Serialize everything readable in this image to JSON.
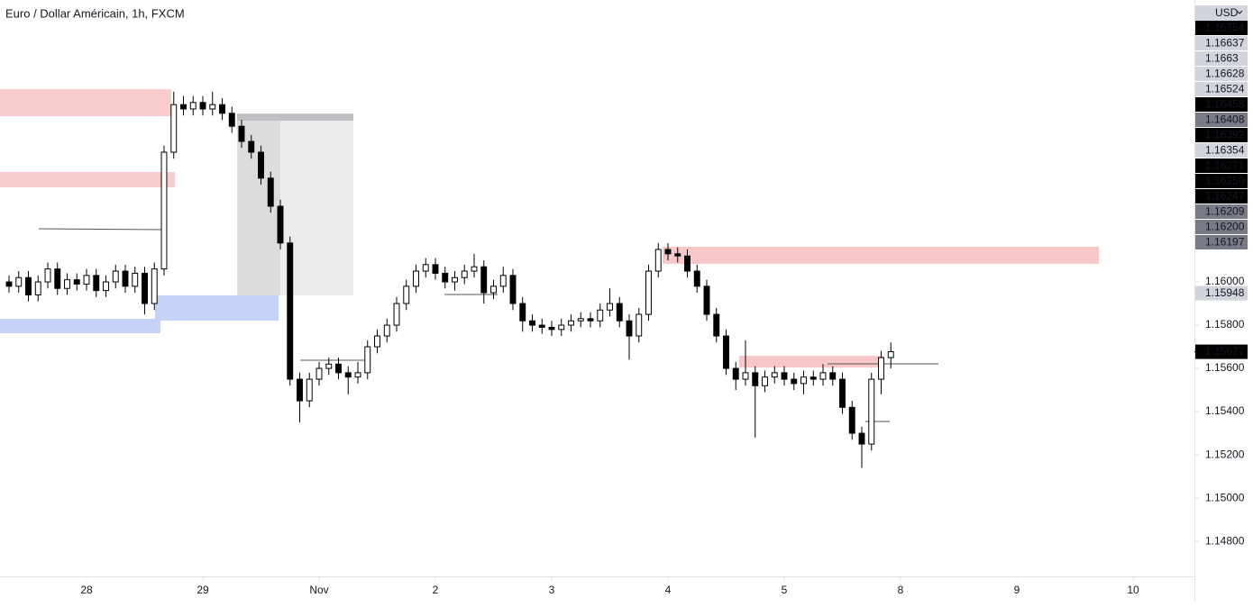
{
  "chart_data": {
    "type": "candlestick",
    "title": "Euro / Dollar Américain, 1h, FXCM",
    "currency": "USD",
    "up_color": "#ffffff",
    "down_color": "#000000",
    "wick_color": "#000000",
    "x": [
      -16,
      -14,
      -12,
      -10,
      -8,
      -6,
      -4,
      -2,
      0,
      2,
      4,
      6,
      8,
      10,
      12,
      14,
      16,
      18,
      20,
      22,
      24,
      26,
      28,
      30,
      32,
      34,
      36,
      38,
      40,
      42,
      44,
      46,
      48,
      50,
      52,
      54,
      56,
      58,
      60,
      62,
      64,
      66,
      68,
      70,
      72,
      74,
      76,
      78,
      80,
      82,
      84,
      86,
      88,
      90,
      92,
      94,
      96,
      98,
      100,
      102,
      104,
      106,
      108,
      110,
      112,
      114,
      116,
      118,
      120,
      122,
      124,
      126,
      128,
      130,
      132,
      134,
      136,
      138,
      140,
      142,
      144,
      146,
      148,
      150,
      152,
      154,
      156,
      158,
      160,
      162,
      164,
      166
    ],
    "open": [
      1.16,
      1.1598,
      1.1602,
      1.1594,
      1.16,
      1.1606,
      1.1597,
      1.1601,
      1.1599,
      1.1603,
      1.1596,
      1.16,
      1.1605,
      1.1598,
      1.1604,
      1.159,
      1.1606,
      1.166,
      1.1682,
      1.168,
      1.1683,
      1.168,
      1.1682,
      1.1678,
      1.1672,
      1.1665,
      1.166,
      1.1648,
      1.1635,
      1.1618,
      1.1555,
      1.1545,
      1.1555,
      1.156,
      1.1562,
      1.1558,
      1.1556,
      1.1558,
      1.157,
      1.1575,
      1.158,
      1.159,
      1.1598,
      1.1605,
      1.1608,
      1.1604,
      1.16,
      1.1602,
      1.1605,
      1.1607,
      1.1595,
      1.1598,
      1.1603,
      1.159,
      1.1582,
      1.158,
      1.1579,
      1.1578,
      1.158,
      1.1582,
      1.1583,
      1.1582,
      1.1587,
      1.159,
      1.1582,
      1.1575,
      1.1585,
      1.1605,
      1.1615,
      1.1613,
      1.1612,
      1.1605,
      1.1598,
      1.1585,
      1.1575,
      1.156,
      1.1555,
      1.1558,
      1.1552,
      1.1556,
      1.1558,
      1.1555,
      1.1553,
      1.1556,
      1.1555,
      1.1558,
      1.1555,
      1.1542,
      1.153,
      1.1525,
      1.1555,
      1.1565
    ],
    "high": [
      1.1603,
      1.1605,
      1.1605,
      1.1603,
      1.1609,
      1.1609,
      1.1604,
      1.1604,
      1.1606,
      1.1606,
      1.1603,
      1.1608,
      1.1608,
      1.1607,
      1.1607,
      1.1609,
      1.1663,
      1.1688,
      1.1686,
      1.1686,
      1.1686,
      1.1688,
      1.1685,
      1.1681,
      1.1675,
      1.1668,
      1.1663,
      1.1651,
      1.1638,
      1.1621,
      1.1558,
      1.1558,
      1.1563,
      1.1565,
      1.1565,
      1.1561,
      1.1563,
      1.1573,
      1.1578,
      1.1583,
      1.1593,
      1.1601,
      1.1608,
      1.1611,
      1.1611,
      1.1607,
      1.1605,
      1.1608,
      1.1613,
      1.161,
      1.1601,
      1.1607,
      1.1606,
      1.1593,
      1.1585,
      1.1583,
      1.1582,
      1.1583,
      1.1585,
      1.1586,
      1.1586,
      1.159,
      1.1597,
      1.1593,
      1.1585,
      1.1588,
      1.1608,
      1.1618,
      1.1618,
      1.1616,
      1.1615,
      1.1608,
      1.1601,
      1.1588,
      1.1578,
      1.1563,
      1.1573,
      1.1561,
      1.1559,
      1.1561,
      1.1561,
      1.1558,
      1.1559,
      1.1559,
      1.1562,
      1.1561,
      1.1558,
      1.1545,
      1.1533,
      1.1558,
      1.1568,
      1.1572
    ],
    "low": [
      1.1595,
      1.1595,
      1.1591,
      1.1591,
      1.1597,
      1.1594,
      1.1594,
      1.1596,
      1.1596,
      1.1593,
      1.1593,
      1.1597,
      1.1595,
      1.1595,
      1.1585,
      1.1587,
      1.1603,
      1.1657,
      1.1677,
      1.1677,
      1.1677,
      1.1677,
      1.1675,
      1.1669,
      1.1662,
      1.1657,
      1.1645,
      1.1632,
      1.1615,
      1.1552,
      1.1535,
      1.1542,
      1.1552,
      1.1557,
      1.1555,
      1.1548,
      1.1553,
      1.1555,
      1.1567,
      1.1572,
      1.1577,
      1.1587,
      1.1595,
      1.1602,
      1.1601,
      1.1597,
      1.1596,
      1.1599,
      1.1602,
      1.159,
      1.1592,
      1.1595,
      1.1587,
      1.1577,
      1.1577,
      1.1576,
      1.1575,
      1.1575,
      1.1577,
      1.1579,
      1.1579,
      1.1579,
      1.1584,
      1.1579,
      1.1564,
      1.1572,
      1.1582,
      1.1602,
      1.161,
      1.1609,
      1.1602,
      1.1595,
      1.1582,
      1.1572,
      1.1557,
      1.155,
      1.1552,
      1.1528,
      1.1549,
      1.1553,
      1.1552,
      1.155,
      1.1548,
      1.1552,
      1.1552,
      1.1552,
      1.1539,
      1.1527,
      1.1514,
      1.1522,
      1.1548,
      1.156
    ],
    "close": [
      1.1598,
      1.1602,
      1.1594,
      1.16,
      1.1606,
      1.1597,
      1.1601,
      1.1599,
      1.1603,
      1.1596,
      1.16,
      1.1605,
      1.1598,
      1.1604,
      1.159,
      1.1606,
      1.166,
      1.1682,
      1.168,
      1.1683,
      1.168,
      1.1682,
      1.1678,
      1.1672,
      1.1665,
      1.166,
      1.1648,
      1.1635,
      1.1618,
      1.1555,
      1.1545,
      1.1555,
      1.156,
      1.1562,
      1.1558,
      1.1556,
      1.1558,
      1.157,
      1.1575,
      1.158,
      1.159,
      1.1598,
      1.1605,
      1.1608,
      1.1604,
      1.16,
      1.1602,
      1.1605,
      1.1607,
      1.1595,
      1.1598,
      1.1603,
      1.159,
      1.1582,
      1.158,
      1.1579,
      1.1578,
      1.158,
      1.1582,
      1.1583,
      1.1582,
      1.1587,
      1.159,
      1.1582,
      1.1575,
      1.1585,
      1.1605,
      1.1615,
      1.1613,
      1.1612,
      1.1605,
      1.1598,
      1.1585,
      1.1575,
      1.156,
      1.1555,
      1.1558,
      1.1552,
      1.1556,
      1.1558,
      1.1555,
      1.1553,
      1.1556,
      1.1555,
      1.1558,
      1.1555,
      1.1542,
      1.153,
      1.1525,
      1.1555,
      1.1565,
      1.15677
    ],
    "xlim": [
      -17.86,
      228.65
    ],
    "xticks": [
      {
        "value": 0,
        "label": "28"
      },
      {
        "value": 24,
        "label": "29"
      },
      {
        "value": 48,
        "label": "Nov"
      },
      {
        "value": 72,
        "label": "2"
      },
      {
        "value": 96,
        "label": "3"
      },
      {
        "value": 120,
        "label": "4"
      },
      {
        "value": 144,
        "label": "5"
      },
      {
        "value": 168,
        "label": "8"
      },
      {
        "value": 192,
        "label": "9"
      },
      {
        "value": 216,
        "label": "10"
      }
    ],
    "ylim": [
      1.14638,
      1.17304
    ],
    "yticks": [
      {
        "value": 1.148,
        "label": "1.14800"
      },
      {
        "value": 1.15,
        "label": "1.15000"
      },
      {
        "value": 1.152,
        "label": "1.15200"
      },
      {
        "value": 1.154,
        "label": "1.15400"
      },
      {
        "value": 1.156,
        "label": "1.15600"
      },
      {
        "value": 1.158,
        "label": "1.15800"
      },
      {
        "value": 1.16,
        "label": "1.16000"
      }
    ],
    "stacked_badges": [
      {
        "value": 1.16754,
        "color": "#000000"
      },
      {
        "value": 1.16637,
        "color": "#d1d4dc"
      },
      {
        "value": 1.1663,
        "color": "#d1d4dc"
      },
      {
        "value": 1.16628,
        "color": "#d1d4dc"
      },
      {
        "value": 1.16524,
        "color": "#d1d4dc"
      },
      {
        "value": 1.16458,
        "color": "#000000"
      },
      {
        "value": 1.16408,
        "color": "#787b86"
      },
      {
        "value": 1.16392,
        "color": "#000000"
      },
      {
        "value": 1.16354,
        "color": "#d1d4dc"
      },
      {
        "value": 1.16271,
        "color": "#000000"
      },
      {
        "value": {
          "value": 1.1625,
          "label": "1.16250"
        },
        "color": "#000000"
      },
      {
        "value": 1.16247,
        "color": "#000000"
      },
      {
        "value": 1.16209,
        "color": "#787b86"
      },
      {
        "value": {
          "value": 1.162,
          "label": "1.16200"
        },
        "color": "#787b86"
      },
      {
        "value": 1.16197,
        "color": "#787b86"
      }
    ],
    "price_badges": [
      {
        "value": 1.15948,
        "color": "#d1d4dc"
      },
      {
        "value": 1.15677,
        "color": "#000000"
      }
    ]
  }
}
